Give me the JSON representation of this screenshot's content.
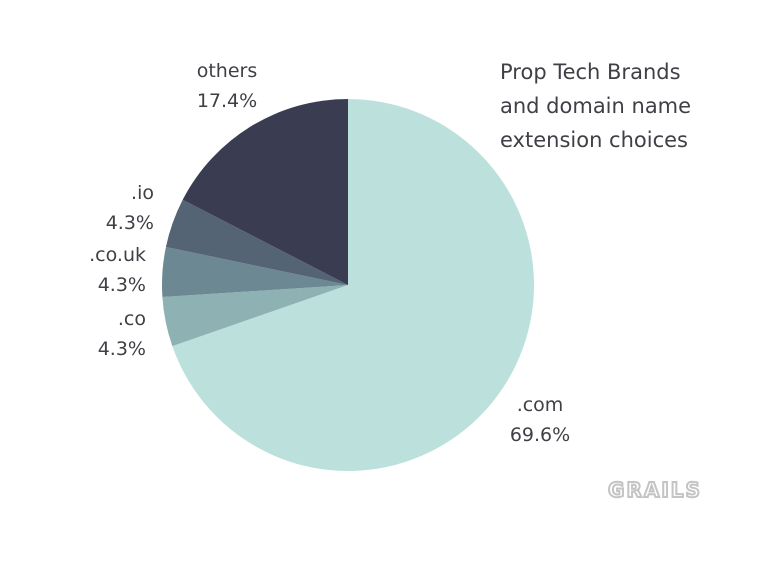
{
  "chart_data": {
    "type": "pie",
    "title_lines": [
      "Prop Tech Brands",
      "and domain name",
      "extension choices"
    ],
    "slices": [
      {
        "label": ".com",
        "value": 69.6,
        "value_text": "69.6%",
        "color": "#bce1dd"
      },
      {
        "label": ".co",
        "value": 4.3,
        "value_text": "4.3%",
        "color": "#8eb1b3"
      },
      {
        "label": ".co.uk",
        "value": 4.3,
        "value_text": "4.3%",
        "color": "#6c8892"
      },
      {
        "label": ".io",
        "value": 4.3,
        "value_text": "4.3%",
        "color": "#546474"
      },
      {
        "label": "others",
        "value": 17.4,
        "value_text": "17.4%",
        "color": "#3a3d51"
      }
    ],
    "start": "top",
    "direction": "clockwise"
  },
  "watermark": {
    "text": "GRAILS",
    "color": "#c4c4c4"
  }
}
